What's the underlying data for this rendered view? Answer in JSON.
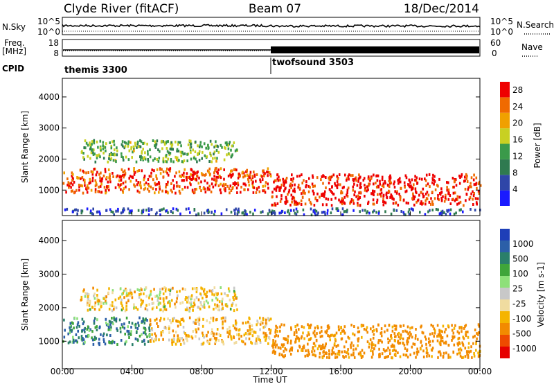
{
  "header": {
    "station": "Clyde River (fitACF)",
    "beam": "Beam 07",
    "date": "18/Dec/2014"
  },
  "top_panels": {
    "nsky": {
      "label": "N.Sky",
      "left_ticks": [
        "10^5",
        "10^0"
      ],
      "right_ticks": [
        "10^5",
        "10^0"
      ],
      "right_label": "N.Search",
      "right_label_style": "dotted-underline"
    },
    "freq": {
      "label_line1": "Freq.",
      "label_line2": "[MHz]",
      "left_ticks": [
        "18",
        "8"
      ],
      "right_ticks": [
        "60",
        "0"
      ],
      "right_label": "Nave",
      "right_label_style": "dotted-underline"
    },
    "cpid": {
      "label": "CPID",
      "programs": [
        {
          "name": "themis 3300",
          "start_hour": 0
        },
        {
          "name": "twofsound 3503",
          "start_hour": 12
        }
      ]
    }
  },
  "colors": {
    "power_scale": [
      "#1a1aff",
      "#2f46a8",
      "#2f7a50",
      "#3a9a4a",
      "#c8d022",
      "#f0a000",
      "#f06a00",
      "#ee0000"
    ],
    "velocity_scale": [
      "#e60000",
      "#ee4a00",
      "#f28a00",
      "#f5b400",
      "#f0dca0",
      "#c8c8c8",
      "#8ee07a",
      "#3fa53a",
      "#2a7f6a",
      "#2c5fa8",
      "#1e3fb8"
    ],
    "nave_trace": "#000000",
    "freq_trace": "#000000"
  },
  "chart_data": [
    {
      "type": "heatmap",
      "panel": "power",
      "xlabel": "",
      "ylabel": "Slant Range [km]",
      "xlim_hours": [
        0,
        24
      ],
      "ylim": [
        180,
        4600
      ],
      "yticks": [
        1000,
        2000,
        3000,
        4000
      ],
      "xticks": [
        "00:00",
        "04:00",
        "08:00",
        "12:00",
        "16:00",
        "20:00",
        "00:00"
      ],
      "colorbar_label": "Power [dB]",
      "colorbar_ticks": [
        4,
        8,
        12,
        16,
        20,
        24,
        28
      ],
      "colorbar_range": [
        0,
        30
      ],
      "grid": false,
      "features": [
        {
          "desc": "main echo band",
          "t_start": 0,
          "t_end": 12,
          "range_km": [
            900,
            1700
          ],
          "power_db": 26
        },
        {
          "desc": "main echo band",
          "t_start": 12,
          "t_end": 24,
          "range_km": [
            500,
            1500
          ],
          "power_db": 28
        },
        {
          "desc": "upper patchy echoes",
          "t_start": 1,
          "t_end": 10,
          "range_km": [
            1900,
            2600
          ],
          "power_db": 14
        },
        {
          "desc": "near-range ground",
          "t_start": 0,
          "t_end": 24,
          "range_km": [
            200,
            400
          ],
          "power_db": 6
        }
      ]
    },
    {
      "type": "heatmap",
      "panel": "velocity",
      "xlabel": "Time UT",
      "ylabel": "Slant Range [km]",
      "xlim_hours": [
        0,
        24
      ],
      "ylim": [
        180,
        4600
      ],
      "yticks": [
        1000,
        2000,
        3000,
        4000
      ],
      "xticks": [
        "00:00",
        "04:00",
        "08:00",
        "12:00",
        "16:00",
        "20:00",
        "00:00"
      ],
      "colorbar_label": "Velocity [m s-1]",
      "colorbar_ticks": [
        "1000",
        "500",
        "100",
        "25",
        "-25",
        "-100",
        "-500",
        "-1000"
      ],
      "grid": false,
      "features": [
        {
          "desc": "main echo band",
          "t_start": 0,
          "t_end": 5,
          "range_km": [
            900,
            1700
          ],
          "velocity_ms": 150
        },
        {
          "desc": "main echo band",
          "t_start": 5,
          "t_end": 12,
          "range_km": [
            900,
            1700
          ],
          "velocity_ms": -150
        },
        {
          "desc": "main echo band",
          "t_start": 12,
          "t_end": 24,
          "range_km": [
            500,
            1500
          ],
          "velocity_ms": -300
        },
        {
          "desc": "upper patchy echoes",
          "t_start": 1,
          "t_end": 10,
          "range_km": [
            1900,
            2600
          ],
          "velocity_ms": -100
        }
      ]
    }
  ]
}
